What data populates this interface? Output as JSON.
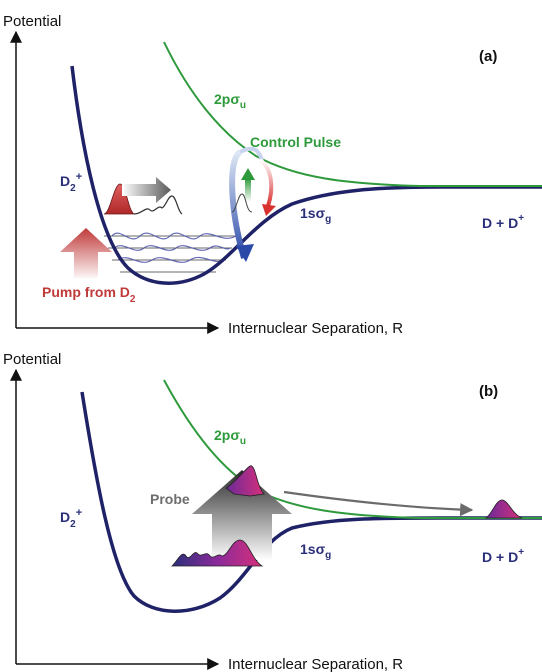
{
  "panel_a": {
    "tag": "(a)",
    "y_axis_label": "Potential",
    "x_axis_label": "Internuclear Separation, R",
    "upper_curve": {
      "prefix": "2pσ",
      "sub": "u"
    },
    "lower_curve": {
      "prefix": "1sσ",
      "sub": "g"
    },
    "molecule": {
      "base": "D",
      "sub": "2",
      "sup": "+"
    },
    "asymptote": {
      "text": "D + D",
      "sup": "+"
    },
    "control": "Control Pulse",
    "pump": {
      "text": "Pump from D",
      "sub": "2"
    }
  },
  "panel_b": {
    "tag": "(b)",
    "y_axis_label": "Potential",
    "x_axis_label": "Internuclear Separation, R",
    "upper_curve": {
      "prefix": "2pσ",
      "sub": "u"
    },
    "lower_curve": {
      "prefix": "1sσ",
      "sub": "g"
    },
    "molecule": {
      "base": "D",
      "sub": "2",
      "sup": "+"
    },
    "asymptote": {
      "text": "D + D",
      "sup": "+"
    },
    "probe": "Probe"
  },
  "colors": {
    "ground_curve": "#1f2266",
    "excited_curve": "#2e9a3c",
    "pump": "#c03a3a",
    "control_up": "#2e9a3c",
    "control_down": "#d93030",
    "wavepacket_purple": "#8a2a9a",
    "wavepacket_magenta": "#d6307a"
  }
}
